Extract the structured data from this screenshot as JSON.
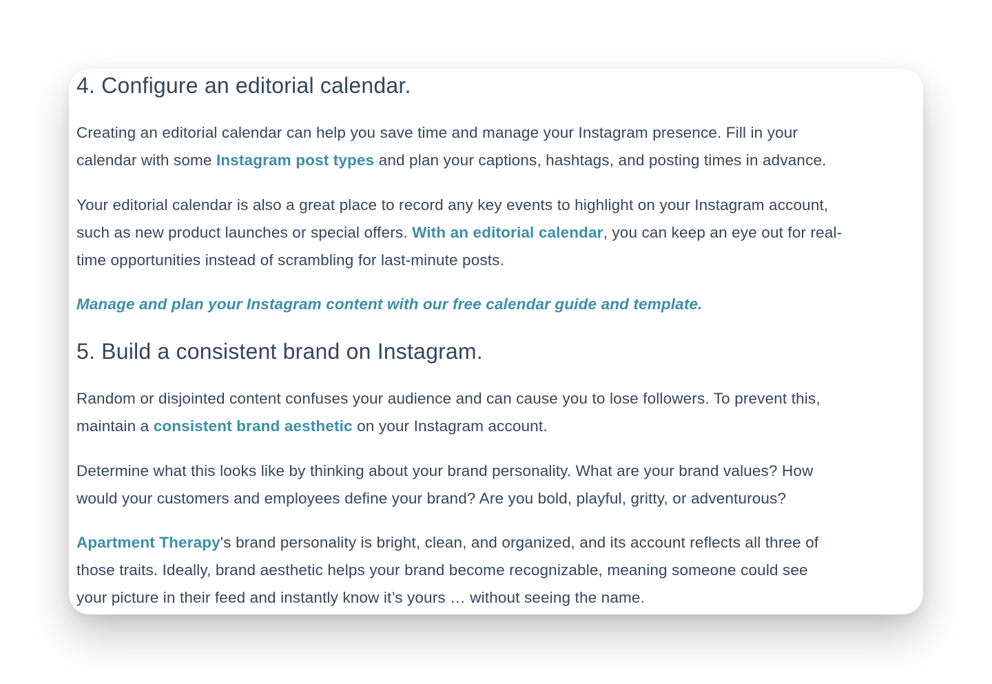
{
  "section4": {
    "heading": "4. Configure an editorial calendar.",
    "p1": {
      "l1": "Creating an editorial calendar can help you save time and manage your Instagram presence. Fill in your",
      "l2a": "calendar with some ",
      "l2link": "Instagram post types",
      "l2b": " and plan your captions, hashtags, and posting times in advance."
    },
    "p2": {
      "l1": "Your editorial calendar is also a great place to record any key events to highlight on your Instagram account,",
      "l2a": "such as new product launches or special offers. ",
      "l2link": "With an editorial calendar",
      "l2b": ", you can keep an eye out for real-",
      "l3": "time opportunities instead of scrambling for last-minute posts."
    },
    "cta": "Manage and plan your Instagram content with our free calendar guide and template."
  },
  "section5": {
    "heading": "5. Build a consistent brand on Instagram.",
    "p1": {
      "l1": "Random or disjointed content confuses your audience and can cause you to lose followers. To prevent this,",
      "l2a": "maintain a ",
      "l2link": "consistent brand aesthetic",
      "l2b": " on your Instagram account."
    },
    "p2": {
      "l1": "Determine what this looks like by thinking about your brand personality. What are your brand values? How",
      "l2": "would your customers and employees define your brand? Are you bold, playful, gritty, or adventurous?"
    },
    "p3": {
      "l1link": "Apartment Therapy",
      "l1b": "'s brand personality is bright, clean, and organized, and its account reflects all three of",
      "l2": "those traits. Ideally, brand aesthetic helps your brand become recognizable, meaning someone could see",
      "l3": "your picture in their feed and instantly know it’s yours … without seeing the name."
    }
  },
  "colors": {
    "text": "#33475b",
    "link": "#3a8ea8",
    "background": "#ffffff"
  }
}
